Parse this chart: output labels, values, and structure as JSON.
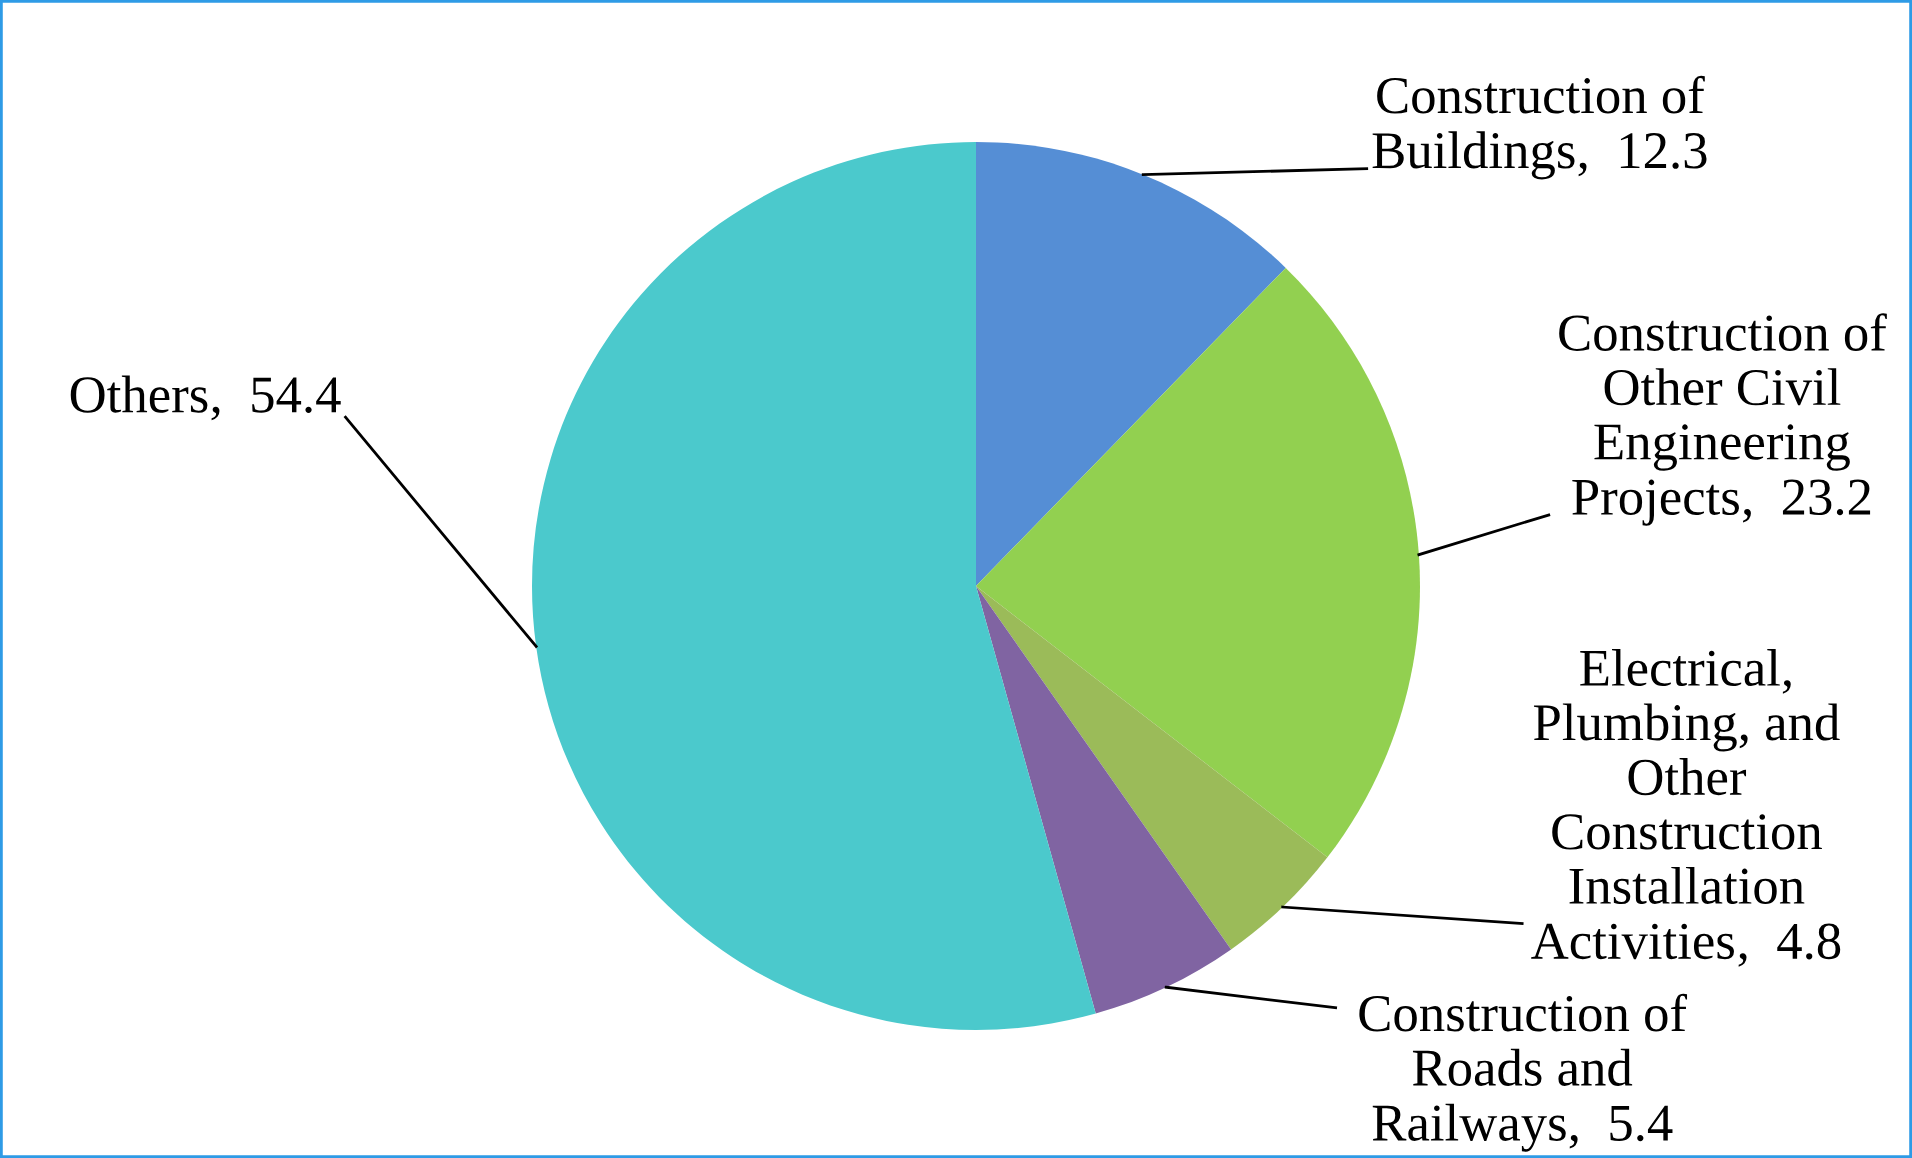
{
  "chart_data": {
    "type": "pie",
    "categories": [
      "Construction of Buildings",
      "Construction of Other Civil Engineering Projects",
      "Electrical, Plumbing, and Other Construction Installation Activities",
      "Construction of Roads and Railways",
      "Others"
    ],
    "values": [
      12.3,
      23.2,
      4.8,
      5.4,
      54.4
    ],
    "colors": [
      "#558ed5",
      "#92d050",
      "#9bbb59",
      "#8064a2",
      "#4bc9cc"
    ],
    "value_labels": [
      ",  12.3",
      ",  23.2",
      ",  4.8",
      ",  5.4",
      ",  54.4"
    ],
    "legend": false
  }
}
